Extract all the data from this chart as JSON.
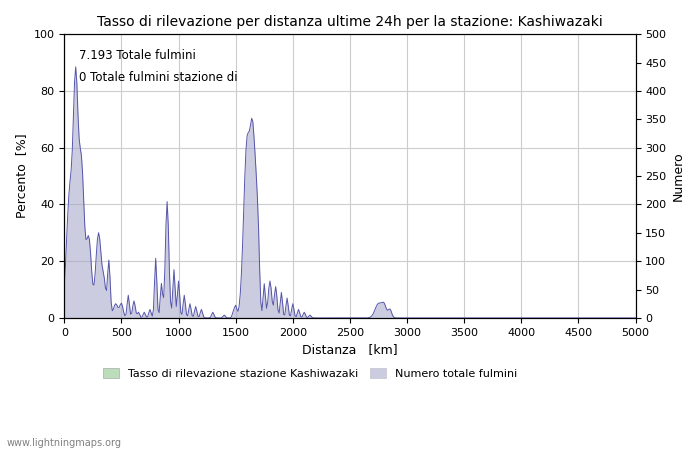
{
  "title": "Tasso di rilevazione per distanza ultime 24h per la stazione: Kashiwazaki",
  "xlabel": "Distanza   [km]",
  "ylabel_left": "Percento  [%]",
  "ylabel_right": "Numero",
  "annotation1": "7.193 Totale fulmini",
  "annotation2": "0 Totale fulmini stazione di",
  "xlim": [
    0,
    5000
  ],
  "ylim_left": [
    0,
    100
  ],
  "ylim_right": [
    0,
    500
  ],
  "xticks": [
    0,
    500,
    1000,
    1500,
    2000,
    2500,
    3000,
    3500,
    4000,
    4500,
    5000
  ],
  "yticks_left": [
    0,
    20,
    40,
    60,
    80,
    100
  ],
  "yticks_right": [
    0,
    50,
    100,
    150,
    200,
    250,
    300,
    350,
    400,
    450,
    500
  ],
  "legend_label1": "Tasso di rilevazione stazione Kashiwazaki",
  "legend_label2": "Numero totale fulmini",
  "fill_color": "#aaaacc",
  "fill_color_green": "#bbddbb",
  "line_color": "#5555aa",
  "watermark": "www.lightningmaps.org",
  "background_color": "#ffffff",
  "grid_color": "#cccccc"
}
